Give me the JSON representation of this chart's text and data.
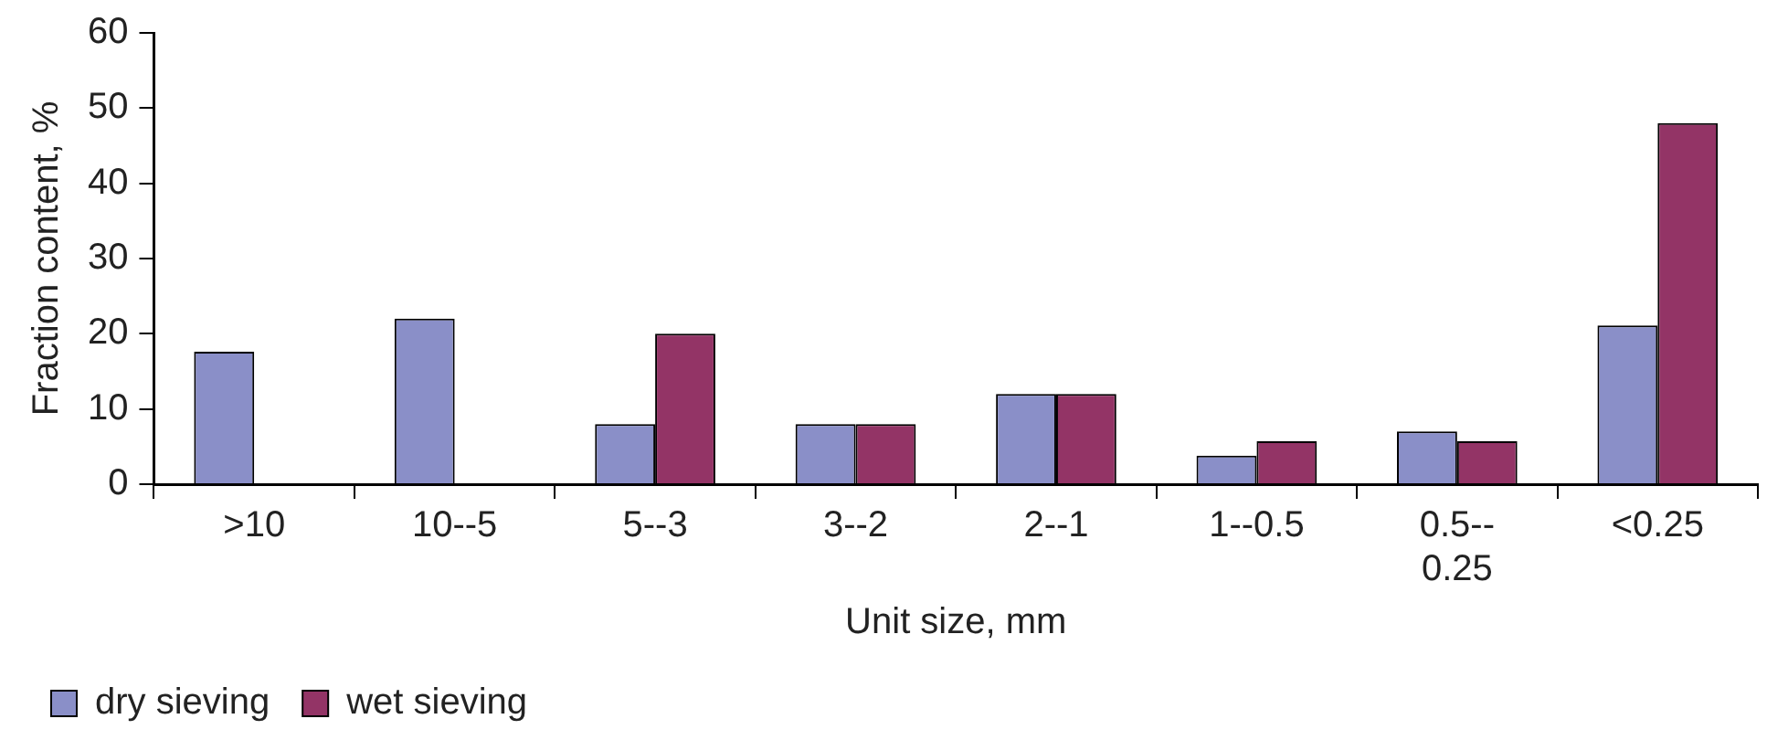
{
  "chart_data": {
    "type": "bar",
    "xlabel": "Unit size, mm",
    "ylabel": "Fraction content, %",
    "categories": [
      ">10",
      "10--5",
      "5--3",
      "3--2",
      "2--1",
      "1--0.5",
      "0.5-- 0.25",
      "<0.25"
    ],
    "series": [
      {
        "name": "dry sieving",
        "color": "#8a8fc8",
        "values": [
          17.6,
          22,
          8,
          8,
          12,
          3.8,
          7,
          21.1
        ]
      },
      {
        "name": "wet sieving",
        "color": "#933466",
        "values": [
          null,
          null,
          20,
          8,
          12,
          5.7,
          5.7,
          48
        ]
      }
    ],
    "ylim": [
      0,
      60
    ],
    "yticks": [
      0,
      10,
      20,
      30,
      40,
      50,
      60
    ],
    "grid": false,
    "legend": "bottom left"
  }
}
